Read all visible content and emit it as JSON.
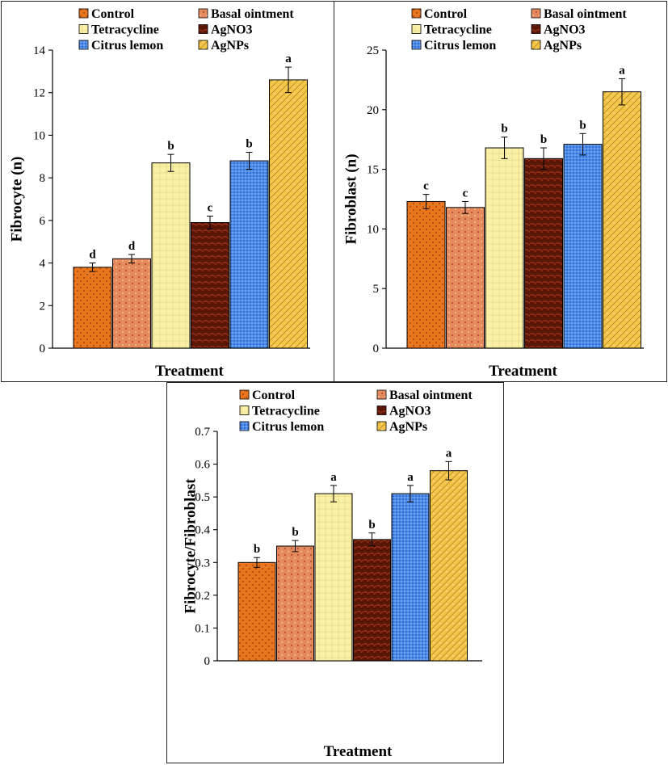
{
  "colors": {
    "Control": "#e8761f",
    "Basal ointment": "#e58a5c",
    "Tetracycline": "#faf0a6",
    "AgNO3": "#5a1606",
    "Citrus lemon": "#2f6fd8",
    "AgNPs": "#f3c64a"
  },
  "chart_data": [
    {
      "id": "fibrocyte",
      "type": "bar",
      "title": "",
      "xlabel": "Treatment",
      "ylabel": "Fibrocyte (n)",
      "ylim": [
        0,
        14
      ],
      "yticks": [
        0,
        2,
        4,
        6,
        8,
        10,
        12,
        14
      ],
      "ytick_labels": [
        "0",
        "2",
        "4",
        "6",
        "8",
        "10",
        "12",
        "14"
      ],
      "categories": [
        "Control",
        "Basal ointment",
        "Tetracycline",
        "AgNO3",
        "Citrus lemon",
        "AgNPs"
      ],
      "values": [
        3.8,
        4.2,
        8.7,
        5.9,
        8.8,
        12.6
      ],
      "errors": [
        0.2,
        0.2,
        0.4,
        0.3,
        0.4,
        0.6
      ],
      "labels": [
        "d",
        "d",
        "b",
        "c",
        "b",
        "a"
      ],
      "legend": [
        "Control",
        "Basal ointment",
        "Tetracycline",
        "AgNO3",
        "Citrus lemon",
        "AgNPs"
      ],
      "legend_position": "top"
    },
    {
      "id": "fibroblast",
      "type": "bar",
      "title": "",
      "xlabel": "Treatment",
      "ylabel": "Fibroblast (n)",
      "ylim": [
        0,
        25
      ],
      "yticks": [
        0,
        5,
        10,
        15,
        20,
        25
      ],
      "ytick_labels": [
        "0",
        "5",
        "10",
        "15",
        "20",
        "25"
      ],
      "categories": [
        "Control",
        "Basal ointment",
        "Tetracycline",
        "AgNO3",
        "Citrus lemon",
        "AgNPs"
      ],
      "values": [
        12.3,
        11.8,
        16.8,
        15.9,
        17.1,
        21.5
      ],
      "errors": [
        0.6,
        0.5,
        0.9,
        0.9,
        0.9,
        1.1
      ],
      "labels": [
        "c",
        "c",
        "b",
        "b",
        "b",
        "a"
      ],
      "legend": [
        "Control",
        "Basal ointment",
        "Tetracycline",
        "AgNO3",
        "Citrus lemon",
        "AgNPs"
      ],
      "legend_position": "top"
    },
    {
      "id": "ratio",
      "type": "bar",
      "title": "",
      "xlabel": "Treatment",
      "ylabel": "Fibrocyte/Fibroblast",
      "ylim": [
        0,
        0.7
      ],
      "yticks": [
        0,
        0.1,
        0.2,
        0.3,
        0.4,
        0.5,
        0.6,
        0.7
      ],
      "ytick_labels": [
        "0",
        "0.1",
        "0.2",
        "0.3",
        "0.4",
        "0.5",
        "0.6",
        "0.7"
      ],
      "categories": [
        "Control",
        "Basal ointment",
        "Tetracycline",
        "AgNO3",
        "Citrus lemon",
        "AgNPs"
      ],
      "values": [
        0.3,
        0.35,
        0.51,
        0.37,
        0.51,
        0.58
      ],
      "errors": [
        0.015,
        0.017,
        0.025,
        0.02,
        0.025,
        0.028
      ],
      "labels": [
        "b",
        "b",
        "a",
        "b",
        "a",
        "a"
      ],
      "legend": [
        "Control",
        "Basal ointment",
        "Tetracycline",
        "AgNO3",
        "Citrus lemon",
        "AgNPs"
      ],
      "legend_position": "top"
    }
  ]
}
